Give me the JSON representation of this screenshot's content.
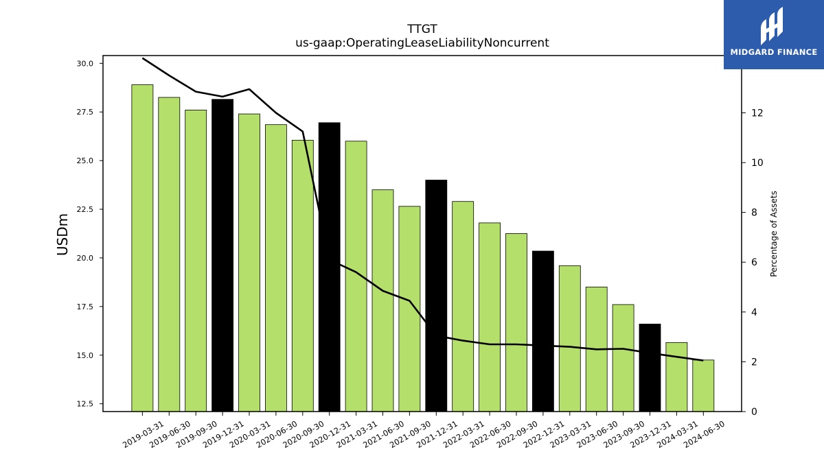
{
  "logo": {
    "text": "MIDGARD FINANCE",
    "icon": "midgard-logo-icon",
    "bg_color": "#2d5cad"
  },
  "chart_data": {
    "type": "bar",
    "title": "TTGT",
    "subtitle": "us-gaap:OperatingLeaseLiabilityNoncurrent",
    "ylabel": "USDm",
    "y2label": "Percentage of Assets",
    "ylim": [
      12.1,
      30.4
    ],
    "y2lim": [
      0,
      14.3
    ],
    "yticks": [
      "12.5",
      "15.0",
      "17.5",
      "20.0",
      "22.5",
      "25.0",
      "27.5",
      "30.0"
    ],
    "y2ticks": [
      "0",
      "2",
      "4",
      "6",
      "8",
      "10",
      "12",
      "14"
    ],
    "categories": [
      "2019-03-31",
      "2019-06-30",
      "2019-09-30",
      "2019-12-31",
      "2020-03-31",
      "2020-06-30",
      "2020-09-30",
      "2020-12-31",
      "2021-03-31",
      "2021-06-30",
      "2021-09-30",
      "2021-12-31",
      "2022-03-31",
      "2022-06-30",
      "2022-09-30",
      "2022-12-31",
      "2023-03-31",
      "2023-06-30",
      "2023-09-30",
      "2023-12-31",
      "2024-03-31",
      "2024-06-30"
    ],
    "series": [
      {
        "type": "bar",
        "axis": "left",
        "values": [
          28.9,
          28.25,
          27.6,
          28.15,
          27.4,
          26.85,
          26.05,
          26.95,
          26.0,
          23.5,
          22.65,
          24.0,
          22.9,
          21.8,
          21.25,
          20.35,
          19.6,
          18.5,
          17.6,
          16.6,
          15.65,
          14.75
        ]
      },
      {
        "type": "line",
        "axis": "right",
        "values": [
          14.2,
          13.5,
          12.85,
          12.65,
          12.95,
          12.0,
          11.25,
          6.1,
          5.6,
          4.85,
          4.45,
          3.05,
          2.85,
          2.7,
          2.7,
          2.65,
          2.6,
          2.5,
          2.52,
          2.35,
          2.2,
          2.05
        ]
      }
    ],
    "bar_colors": {
      "quarter": "#b3df6a",
      "year_end": "#000000"
    },
    "line_color": "#000000",
    "grid": false
  }
}
